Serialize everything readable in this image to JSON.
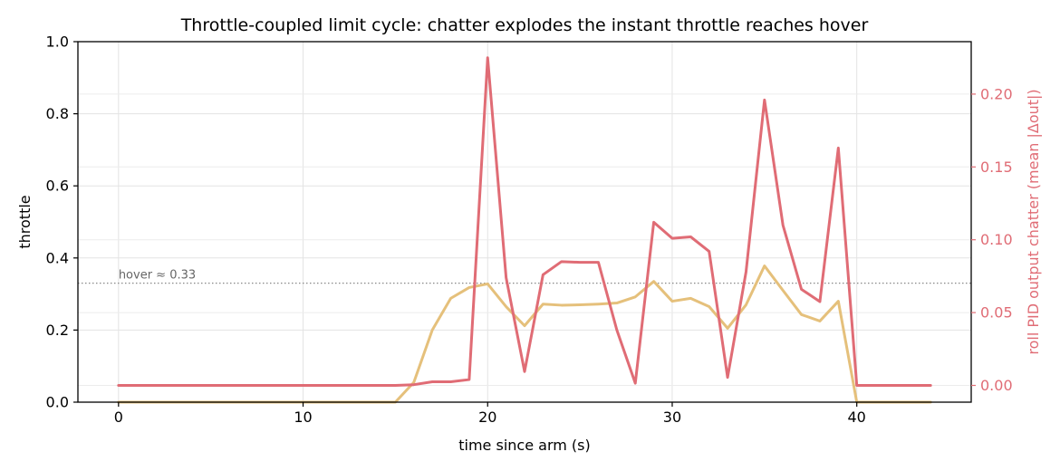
{
  "chart_data": {
    "type": "line",
    "title": "Throttle-coupled limit cycle: chatter explodes the instant throttle reaches hover",
    "xlabel": "time since arm (s)",
    "ylabel": "throttle",
    "y2label": "roll PID output chatter  (mean |Δout|)",
    "xlim": [
      -2.2,
      46.2
    ],
    "ylim": [
      0,
      1.0
    ],
    "y2lim": [
      -0.0115,
      0.236
    ],
    "xticks": [
      0,
      10,
      20,
      30,
      40
    ],
    "xtick_labels": [
      "0",
      "10",
      "20",
      "30",
      "40"
    ],
    "yticks": [
      0.0,
      0.2,
      0.4,
      0.6,
      0.8,
      1.0
    ],
    "ytick_labels": [
      "0.0",
      "0.2",
      "0.4",
      "0.6",
      "0.8",
      "1.0"
    ],
    "y2ticks": [
      0.0,
      0.05,
      0.1,
      0.15,
      0.2
    ],
    "y2tick_labels": [
      "0.00",
      "0.05",
      "0.10",
      "0.15",
      "0.20"
    ],
    "grid": true,
    "x": [
      0,
      1,
      2,
      3,
      4,
      5,
      6,
      7,
      8,
      9,
      10,
      11,
      12,
      13,
      14,
      15,
      16,
      17,
      18,
      19,
      20,
      21,
      22,
      23,
      24,
      25,
      26,
      27,
      28,
      29,
      30,
      31,
      32,
      33,
      34,
      35,
      36,
      37,
      38,
      39,
      40,
      41,
      42,
      43,
      44
    ],
    "series": [
      {
        "axis": "left",
        "color": "#e5c07b",
        "values": [
          0,
          0,
          0,
          0,
          0,
          0,
          0,
          0,
          0,
          0,
          0,
          0,
          0,
          0,
          0,
          0,
          0.055,
          0.2,
          0.288,
          0.318,
          0.328,
          0.265,
          0.212,
          0.272,
          0.269,
          0.27,
          0.272,
          0.275,
          0.292,
          0.335,
          0.28,
          0.288,
          0.265,
          0.205,
          0.27,
          0.378,
          0.31,
          0.243,
          0.225,
          0.28,
          0,
          0,
          0,
          0,
          0
        ]
      },
      {
        "axis": "right",
        "color": "#e06c75",
        "values": [
          0,
          0,
          0,
          0,
          0,
          0,
          0,
          0,
          0,
          0,
          0,
          0,
          0,
          0,
          0,
          0,
          0.0005,
          0.0025,
          0.0025,
          0.004,
          0.225,
          0.074,
          0.0095,
          0.076,
          0.085,
          0.0845,
          0.0845,
          0.038,
          0.0015,
          0.112,
          0.101,
          0.102,
          0.092,
          0.0055,
          0.078,
          0.196,
          0.11,
          0.066,
          0.0575,
          0.163,
          0,
          0,
          0,
          0,
          0
        ]
      }
    ],
    "annotations": [
      {
        "text": "hover ≈ 0.33",
        "y": 0.33,
        "axis": "left",
        "style": "dotted",
        "color": "#888888"
      }
    ]
  }
}
